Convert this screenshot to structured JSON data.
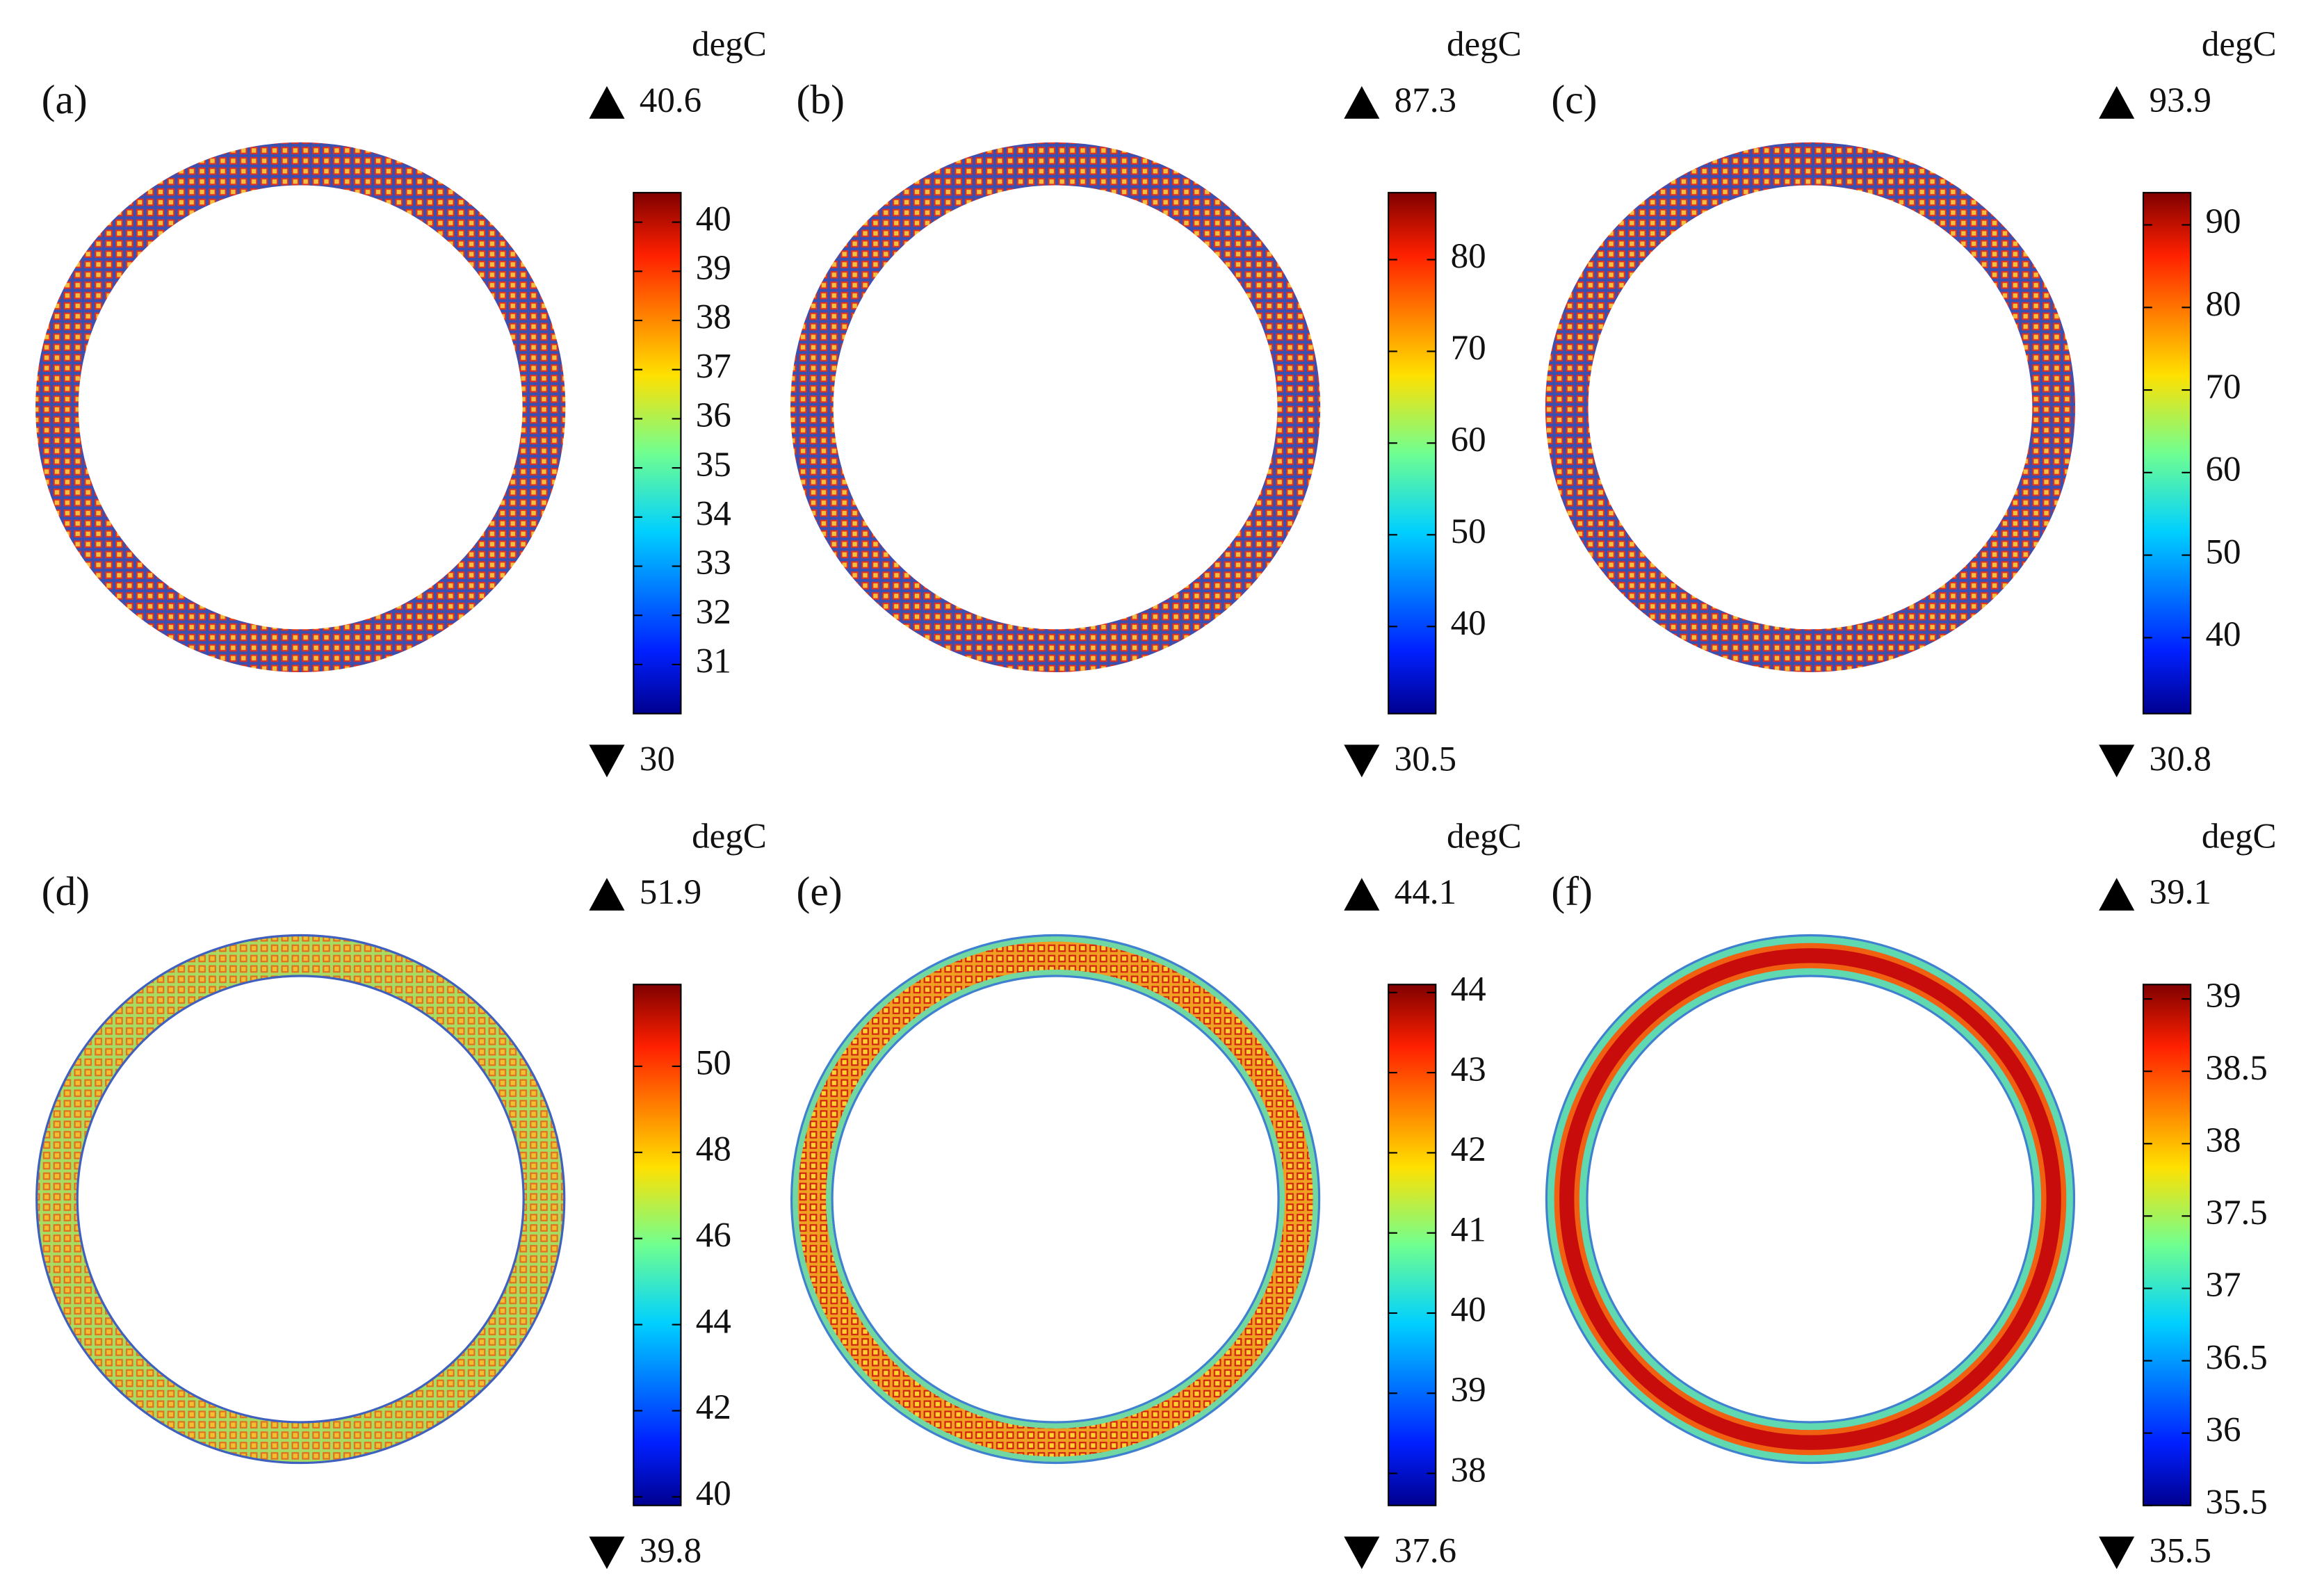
{
  "chart_data": [
    {
      "type": "colormap",
      "title": "(a)",
      "unit": "degC",
      "max": 40.6,
      "min": 30,
      "yticks": [
        31,
        32,
        33,
        34,
        35,
        36,
        37,
        38,
        39,
        40
      ]
    },
    {
      "type": "colormap",
      "title": "(b)",
      "unit": "degC",
      "max": 87.3,
      "min": 30.5,
      "yticks": [
        40,
        50,
        60,
        70,
        80
      ]
    },
    {
      "type": "colormap",
      "title": "(c)",
      "unit": "degC",
      "max": 93.9,
      "min": 30.8,
      "yticks": [
        40,
        50,
        60,
        70,
        80,
        90
      ]
    },
    {
      "type": "colormap",
      "title": "(d)",
      "unit": "degC",
      "max": 51.9,
      "min": 39.8,
      "yticks": [
        40,
        42,
        44,
        46,
        48,
        50
      ]
    },
    {
      "type": "colormap",
      "title": "(e)",
      "unit": "degC",
      "max": 44.1,
      "min": 37.6,
      "yticks": [
        38,
        39,
        40,
        41,
        42,
        43,
        44
      ]
    },
    {
      "type": "colormap",
      "title": "(f)",
      "unit": "degC",
      "max": 39.1,
      "min": 35.5,
      "yticks": [
        35.5,
        36,
        36.5,
        37,
        37.5,
        38,
        38.5,
        39
      ]
    }
  ]
}
